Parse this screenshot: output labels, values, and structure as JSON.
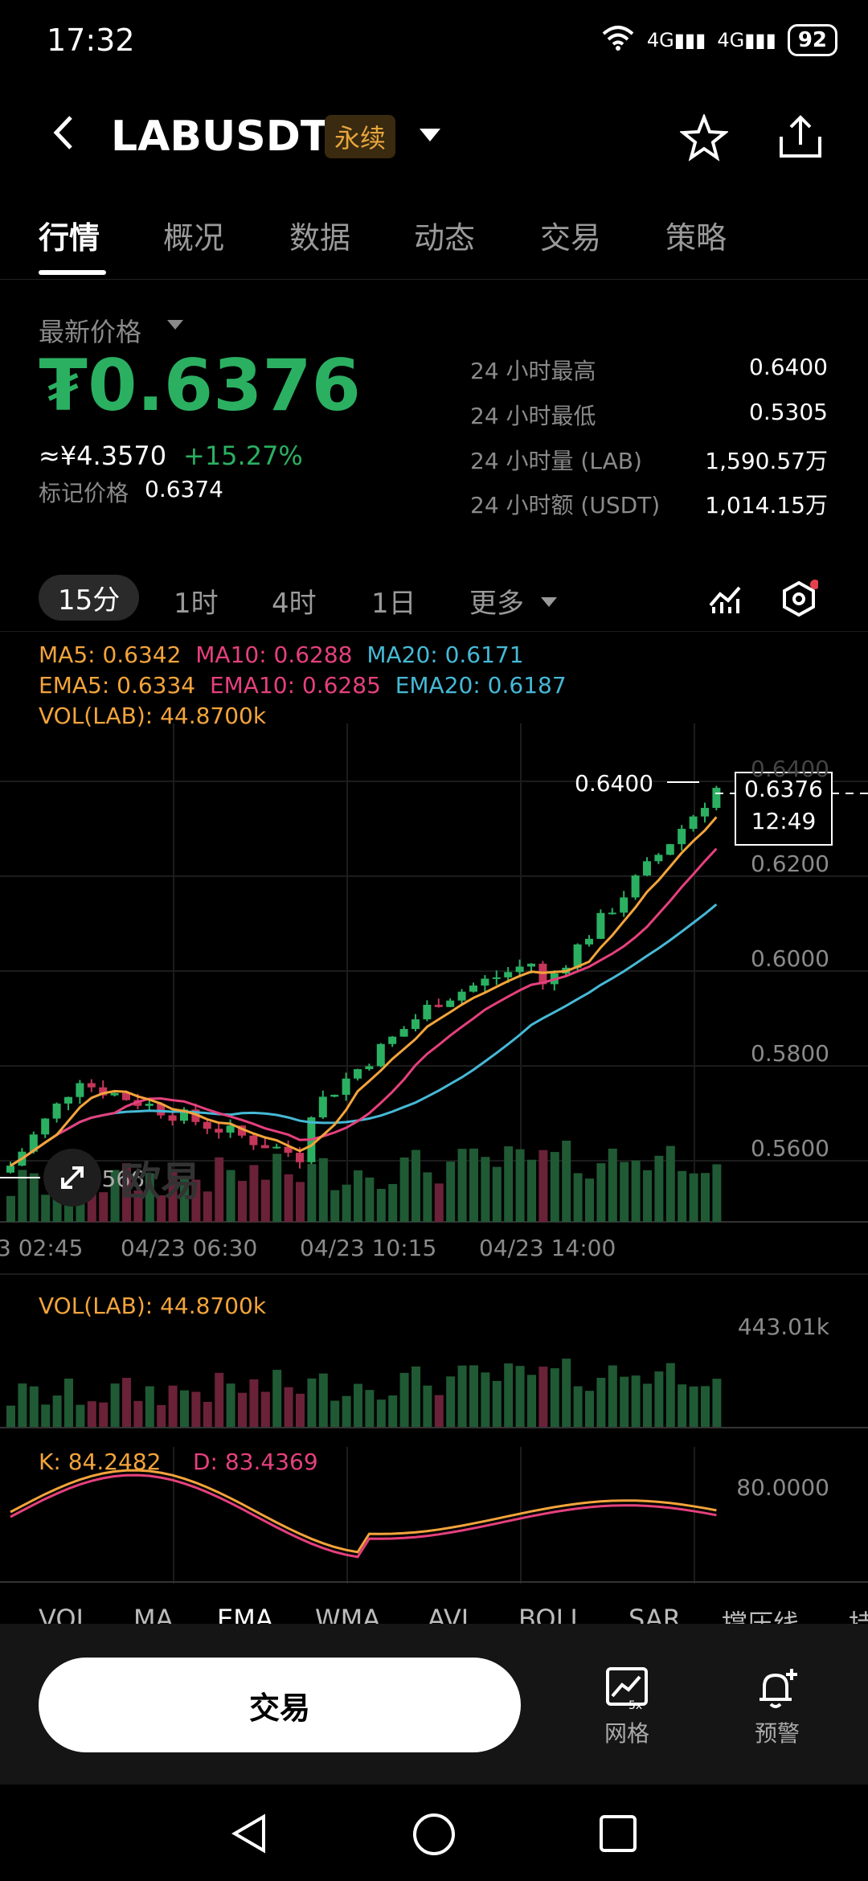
{
  "status_bar": {
    "time": "17:32",
    "battery": "92",
    "signal1": "4G",
    "signal2": "4G"
  },
  "header": {
    "pair": "LABUSDT",
    "contract_type": "永续"
  },
  "tabs": [
    "行情",
    "概况",
    "数据",
    "动态",
    "交易",
    "策略"
  ],
  "price": {
    "label": "最新价格",
    "last": "₮0.6376",
    "cny": "≈¥4.3570",
    "change": "+15.27%",
    "mark_label": "标记价格",
    "mark_value": "0.6374"
  },
  "stats": [
    {
      "label": "24 小时最高",
      "value": "0.6400"
    },
    {
      "label": "24 小时最低",
      "value": "0.5305"
    },
    {
      "label": "24 小时量 (LAB)",
      "value": "1,590.57万"
    },
    {
      "label": "24 小时额 (USDT)",
      "value": "1,014.15万"
    }
  ],
  "intervals": [
    "15分",
    "1时",
    "4时",
    "1日",
    "更多"
  ],
  "indicators": {
    "ma5": "MA5: 0.6342",
    "ma10": "MA10: 0.6288",
    "ma20": "MA20: 0.6171",
    "ema5": "EMA5: 0.6334",
    "ema10": "EMA10: 0.6285",
    "ema20": "EMA20: 0.6187",
    "vol": "VOL(LAB): 44.8700k"
  },
  "chart": {
    "price_axis": [
      "0.6400",
      "0.6200",
      "0.6000",
      "0.5800",
      "0.5600"
    ],
    "time_axis": [
      "3 02:45",
      "04/23 06:30",
      "04/23 10:15",
      "04/23 14:00"
    ],
    "high_label": "0.6400",
    "low_label": "0.5566",
    "current_price": "0.6376",
    "countdown": "12:49",
    "watermark": "欧易"
  },
  "volume_panel": {
    "label": "VOL(LAB): 44.8700k",
    "axis": "443.01k"
  },
  "kd_panel": {
    "k": "K: 84.2482",
    "d": "D: 83.4369",
    "axis": "80.0000"
  },
  "indicator_tabs": [
    "VOL",
    "MA",
    "EMA",
    "WMA",
    "AVL",
    "BOLL",
    "SAR",
    "撑压线",
    "持"
  ],
  "bottom": {
    "trade": "交易",
    "grid": "网格",
    "grid_badge": "5x",
    "alert": "预警"
  },
  "colors": {
    "up": "#2bb062",
    "down": "#c6365a",
    "ma5": "#f3a43b",
    "ma10": "#e5407d",
    "ma20": "#46b9d6"
  }
}
